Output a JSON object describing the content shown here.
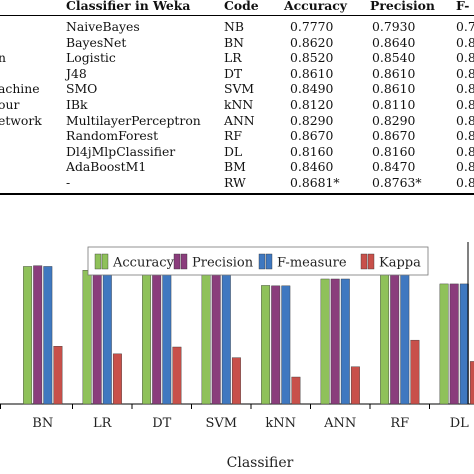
{
  "table": {
    "headers": [
      "Classifier in Weka",
      "Code",
      "Accuracy",
      "Precision",
      "F-"
    ],
    "rows": [
      {
        "left": "",
        "classifier": "NaiveBayes",
        "code": "NB",
        "accuracy": "0.7770",
        "precision": "0.7930",
        "fm": "0.7"
      },
      {
        "left": "",
        "classifier": "BayesNet",
        "code": "BN",
        "accuracy": "0.8620",
        "precision": "0.8640",
        "fm": "0.8"
      },
      {
        "left": "n",
        "classifier": "Logistic",
        "code": "LR",
        "accuracy": "0.8520",
        "precision": "0.8540",
        "fm": "0.8"
      },
      {
        "left": "",
        "classifier": "J48",
        "code": "DT",
        "accuracy": "0.8610",
        "precision": "0.8610",
        "fm": "0.8"
      },
      {
        "left": "achine",
        "classifier": "SMO",
        "code": "SVM",
        "accuracy": "0.8490",
        "precision": "0.8610",
        "fm": "0.8"
      },
      {
        "left": "our",
        "classifier": "IBk",
        "code": "kNN",
        "accuracy": "0.8120",
        "precision": "0.8110",
        "fm": "0.8"
      },
      {
        "left": "etwork",
        "classifier": "MultilayerPerceptron",
        "code": "ANN",
        "accuracy": "0.8290",
        "precision": "0.8290",
        "fm": "0.8"
      },
      {
        "left": "",
        "classifier": "RandomForest",
        "code": "RF",
        "accuracy": "0.8670",
        "precision": "0.8670",
        "fm": "0.8"
      },
      {
        "left": "",
        "classifier": "Dl4jMlpClassifier",
        "code": "DL",
        "accuracy": "0.8160",
        "precision": "0.8160",
        "fm": "0.8"
      },
      {
        "left": "",
        "classifier": "AdaBoostM1",
        "code": "BM",
        "accuracy": "0.8460",
        "precision": "0.8470",
        "fm": "0.8"
      },
      {
        "left": "",
        "classifier": "-",
        "code": "RW",
        "accuracy": "0.8681*",
        "precision": "0.8763*",
        "fm": "0.8"
      }
    ]
  },
  "chart_data": {
    "type": "bar",
    "xlabel": "Classifier",
    "ylabel": "",
    "ylim": [
      0.5,
      0.9
    ],
    "categories": [
      "BN",
      "LR",
      "DT",
      "SVM",
      "kNN",
      "ANN",
      "RF",
      "DL"
    ],
    "legend_position": "top",
    "series": [
      {
        "name": "Accuracy",
        "color": "#8fc15a",
        "values": [
          0.862,
          0.852,
          0.861,
          0.849,
          0.812,
          0.829,
          0.867,
          0.816
        ]
      },
      {
        "name": "Precision",
        "color": "#8a3d7c",
        "values": [
          0.864,
          0.854,
          0.861,
          0.861,
          0.811,
          0.829,
          0.867,
          0.816
        ]
      },
      {
        "name": "F-measure",
        "color": "#3f78c0",
        "values": [
          0.862,
          0.852,
          0.861,
          0.852,
          0.811,
          0.829,
          0.867,
          0.816
        ]
      },
      {
        "name": "Kappa",
        "color": "#c8504a",
        "values": [
          0.652,
          0.632,
          0.65,
          0.622,
          0.571,
          0.598,
          0.668,
          0.612
        ]
      }
    ]
  }
}
